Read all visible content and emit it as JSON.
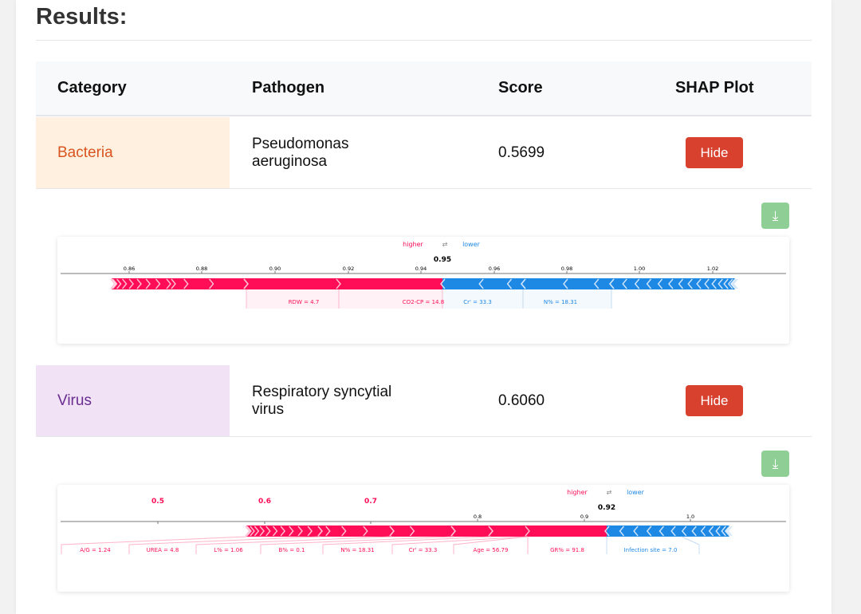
{
  "page": {
    "title": "Results:"
  },
  "table": {
    "headers": {
      "category": "Category",
      "pathogen": "Pathogen",
      "score": "Score",
      "shap": "SHAP Plot"
    },
    "rows": [
      {
        "category": "Bacteria",
        "category_color": "#d9541e",
        "category_bg": "#fff0df",
        "pathogen_line1": "Pseudomonas",
        "pathogen_line2": "aeruginosa",
        "score": "0.5699",
        "button": "Hide"
      },
      {
        "category": "Virus",
        "category_color": "#6a2c91",
        "category_bg": "#f1e3f5",
        "pathogen_line1": "Respiratory syncytial",
        "pathogen_line2": "virus",
        "score": "0.6060",
        "button": "Hide"
      }
    ]
  },
  "download_icon": "download-icon",
  "colors": {
    "higher": "#ff0d57",
    "lower": "#1e88e5",
    "danger_button": "#d9412f",
    "download_button": "#8fcf95"
  },
  "shap_plots": [
    {
      "higher_label": "higher",
      "lower_label": "lower",
      "arrows": "⇄",
      "base_value_label": "0.95",
      "ticks": [
        "0.86",
        "0.88",
        "0.90",
        "0.92",
        "0.94",
        "0.96",
        "0.98",
        "1.00",
        "1.02"
      ],
      "big_ticks": [],
      "positive_features": [
        "RDW = 4.7",
        "CO2-CP = 14.8"
      ],
      "negative_features": [
        "Cr' = 33.3",
        "N% = 18.31"
      ]
    },
    {
      "higher_label": "higher",
      "lower_label": "lower",
      "arrows": "⇄",
      "base_value_label": "0.92",
      "ticks": [
        "0.8",
        "0.9",
        "1.0"
      ],
      "big_ticks": [
        "0.5",
        "0.6",
        "0.7"
      ],
      "positive_features": [
        "A/G = 1.24",
        "UREA = 4.8",
        "L% = 1.06",
        "B% = 0.1",
        "N% = 18.31",
        "Cr' = 33.3",
        "Age = 56.79",
        "GR% = 91.8"
      ],
      "negative_features": [
        "Infection site = 7.0"
      ]
    }
  ]
}
